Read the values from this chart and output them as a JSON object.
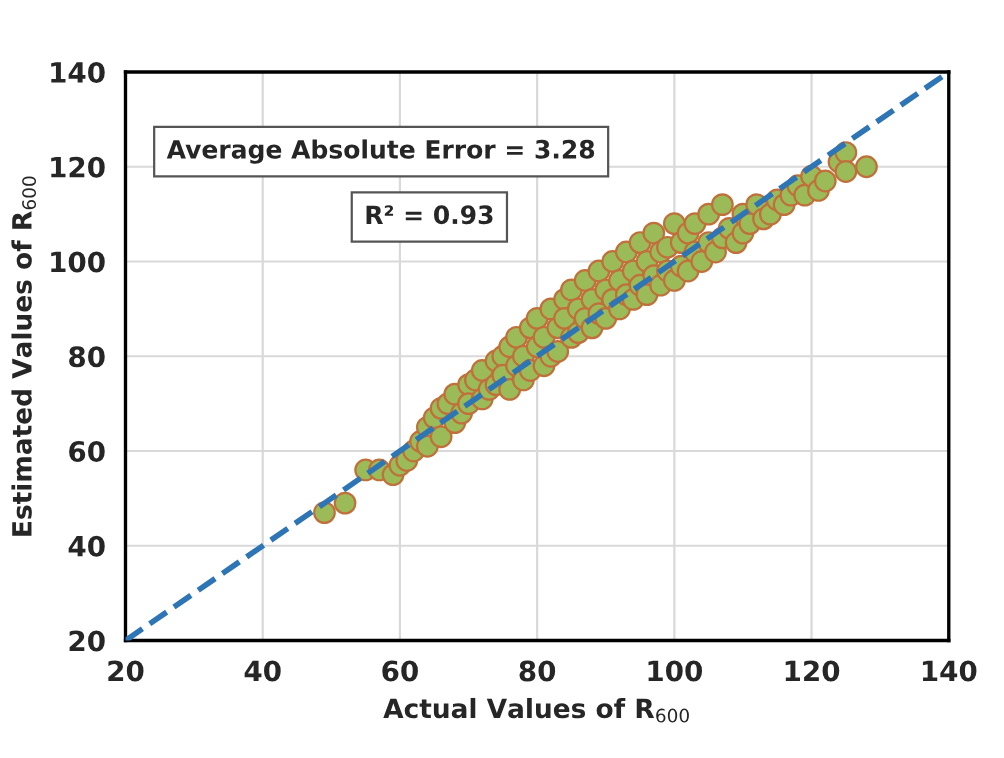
{
  "chart_data": {
    "type": "scatter",
    "xlabel": "Actual Values of R$_{600}$",
    "ylabel": "Estimated Values of R$_{600}$",
    "xlim": [
      20,
      140
    ],
    "ylim": [
      20,
      140
    ],
    "xticks": [
      20,
      40,
      60,
      80,
      100,
      120,
      140
    ],
    "yticks": [
      20,
      40,
      60,
      80,
      100,
      120,
      140
    ],
    "grid": true,
    "marker": "circle",
    "annotations": [
      "Average Absolute Error = 3.28",
      "R² = 0.93"
    ],
    "series": [
      {
        "color": "#9bbb59",
        "x": [
          49,
          52,
          55,
          57,
          59,
          60,
          61,
          62,
          63,
          64,
          64,
          65,
          66,
          66,
          67,
          68,
          68,
          69,
          70,
          70,
          71,
          72,
          72,
          73,
          74,
          74,
          75,
          75,
          76,
          76,
          77,
          77,
          78,
          78,
          79,
          79,
          80,
          80,
          81,
          81,
          82,
          82,
          83,
          83,
          84,
          84,
          85,
          85,
          86,
          86,
          87,
          87,
          88,
          88,
          89,
          89,
          90,
          90,
          91,
          91,
          92,
          92,
          93,
          93,
          94,
          94,
          95,
          95,
          96,
          96,
          97,
          97,
          98,
          98,
          99,
          99,
          100,
          100,
          101,
          101,
          102,
          102,
          103,
          103,
          104,
          105,
          105,
          106,
          107,
          107,
          108,
          109,
          110,
          110,
          111,
          112,
          113,
          114,
          115,
          116,
          117,
          118,
          119,
          120,
          121,
          122,
          124,
          125,
          125,
          128
        ],
        "values": [
          47,
          49,
          56,
          56,
          55,
          57,
          58,
          60,
          62,
          65,
          61,
          67,
          63,
          69,
          70,
          66,
          72,
          68,
          74,
          70,
          75,
          71,
          77,
          73,
          79,
          74,
          80,
          76,
          73,
          82,
          78,
          84,
          75,
          80,
          86,
          77,
          82,
          88,
          78,
          84,
          90,
          80,
          86,
          81,
          92,
          88,
          84,
          94,
          90,
          85,
          96,
          88,
          92,
          86,
          98,
          89,
          94,
          88,
          100,
          92,
          96,
          90,
          102,
          93,
          98,
          92,
          104,
          95,
          100,
          93,
          106,
          97,
          102,
          95,
          103,
          98,
          108,
          96,
          104,
          99,
          106,
          98,
          102,
          108,
          100,
          104,
          110,
          102,
          112,
          105,
          107,
          104,
          110,
          106,
          108,
          112,
          109,
          110,
          113,
          112,
          114,
          116,
          114,
          118,
          115,
          117,
          121,
          123,
          119,
          120
        ]
      },
      {
        "type": "line",
        "color": "#2e75b6",
        "line_style": "dashed",
        "marker": "none",
        "x": [
          20,
          140
        ],
        "values": [
          20,
          140
        ]
      }
    ]
  }
}
